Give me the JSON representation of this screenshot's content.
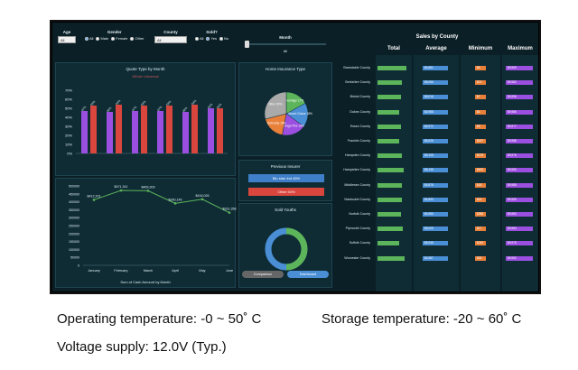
{
  "filters": {
    "age": {
      "label": "Age",
      "value": "All"
    },
    "gender": {
      "label": "Gender",
      "options": [
        "All",
        "Male",
        "Female",
        "Other"
      ],
      "selected": "All"
    },
    "county": {
      "label": "County",
      "value": "All"
    },
    "sold": {
      "label": "Sold?",
      "options": [
        "All",
        "Yes",
        "No"
      ],
      "selected": "Yes"
    },
    "month": {
      "label": "Month",
      "value": "All"
    }
  },
  "quote_chart": {
    "title": "Quote Type by Month",
    "legend": "Whole    Universal",
    "ticks": [
      "70%",
      "60%",
      "50%",
      "40%",
      "30%",
      "20%",
      "10%",
      "0%"
    ],
    "categories": [
      "January",
      "February",
      "March",
      "April",
      "May",
      "June"
    ],
    "series": [
      {
        "name": "Whole",
        "values": [
          47,
          46,
          47,
          47,
          46,
          50
        ]
      },
      {
        "name": "Universal",
        "values": [
          53,
          54,
          53,
          53,
          54,
          50
        ]
      }
    ]
  },
  "cash_chart": {
    "title": "Sum of Cash Amount by Month",
    "ticks": [
      "500000",
      "450000",
      "400000",
      "350000",
      "300000",
      "250000",
      "200000",
      "150000",
      "100000",
      "50000",
      "0"
    ],
    "categories": [
      "January",
      "February",
      "March",
      "April",
      "May",
      "June"
    ],
    "values": [
      412201,
      471341,
      469309,
      390145,
      416026,
      331358
    ],
    "labels": [
      "$412,201",
      "$471,341",
      "$469,309",
      "$390,145",
      "$416,026",
      "$331,358"
    ]
  },
  "home_insurance": {
    "title": "Home Insurance Type",
    "slices": [
      {
        "label": "Advantage 17%",
        "value": 17,
        "color": "#5db55b"
      },
      {
        "label": "Smart Choice 18%",
        "value": 18,
        "color": "#4a8fd6"
      },
      {
        "label": "Coverage Plus 18%",
        "value": 18,
        "color": "#9b4fe0"
      },
      {
        "label": "Defensity 18%",
        "value": 18,
        "color": "#e8803a"
      },
      {
        "label": "Other 29%",
        "value": 29,
        "color": "#aaaaaa"
      }
    ]
  },
  "previous_insurer": {
    "title": "Previous Insurer",
    "bars": [
      {
        "label": "Blu stan Ind 46%",
        "value": 46,
        "color": "#3f7fc9"
      },
      {
        "label": "Other 54%",
        "value": 54,
        "color": "#d9463e"
      }
    ]
  },
  "sold_youths": {
    "title": "Sold Youths",
    "slices": [
      {
        "value": 50,
        "color": "#5db55b"
      },
      {
        "value": 50,
        "color": "#4a8fd6"
      }
    ]
  },
  "sales_table": {
    "title": "Sales by County",
    "headers": [
      "Total",
      "Average",
      "Minimum",
      "Maximum"
    ],
    "rows": [
      {
        "county": "Barnstable County",
        "total": 0.95,
        "avg": "$4,861",
        "min": "$5",
        "max": "$9,969"
      },
      {
        "county": "Berkshire County",
        "total": 0.8,
        "avg": "$5,066",
        "min": "$74",
        "max": "$9,982"
      },
      {
        "county": "Bristol County",
        "total": 0.75,
        "avg": "$5,016",
        "min": "$7",
        "max": "$9,996"
      },
      {
        "county": "Dukes County",
        "total": 0.7,
        "avg": "$4,988",
        "min": "$4",
        "max": "$9,986"
      },
      {
        "county": "Essex County",
        "total": 0.75,
        "avg": "$4,972",
        "min": "$8",
        "max": "$9,977"
      },
      {
        "county": "Franklin County",
        "total": 0.7,
        "avg": "$5,026",
        "min": "$187",
        "max": "$9,988"
      },
      {
        "county": "Hampden County",
        "total": 0.8,
        "avg": "$5,108",
        "min": "$278",
        "max": "$9,976"
      },
      {
        "county": "Hampshire County",
        "total": 0.85,
        "avg": "$5,135",
        "min": "$525",
        "max": "$9,990"
      },
      {
        "county": "Middlesex County",
        "total": 0.8,
        "avg": "$4,878",
        "min": "$18",
        "max": "$9,988"
      },
      {
        "county": "Nantucket County",
        "total": 0.78,
        "avg": "$4,893",
        "min": "$18",
        "max": "$9,969"
      },
      {
        "county": "Norfolk County",
        "total": 0.75,
        "avg": "$4,950",
        "min": "$288",
        "max": "$9,983"
      },
      {
        "county": "Plymouth County",
        "total": 0.82,
        "avg": "$5,009",
        "min": "$17",
        "max": "$9,984"
      },
      {
        "county": "Suffolk County",
        "total": 0.72,
        "avg": "$5,046",
        "min": "$240",
        "max": "$9,975"
      },
      {
        "county": "Worcester County",
        "total": 0.88,
        "avg": "$4,987",
        "min": "$26",
        "max": "$9,992"
      }
    ]
  },
  "buttons": {
    "comparison": "Comparison",
    "dashboard": "Dashboard"
  },
  "captions": {
    "operating": "Operating temperature: -0 ~ 50˚ C",
    "storage": "Storage temperature: -20 ~ 60˚ C",
    "voltage": "Voltage supply:  12.0V (Typ.)"
  }
}
